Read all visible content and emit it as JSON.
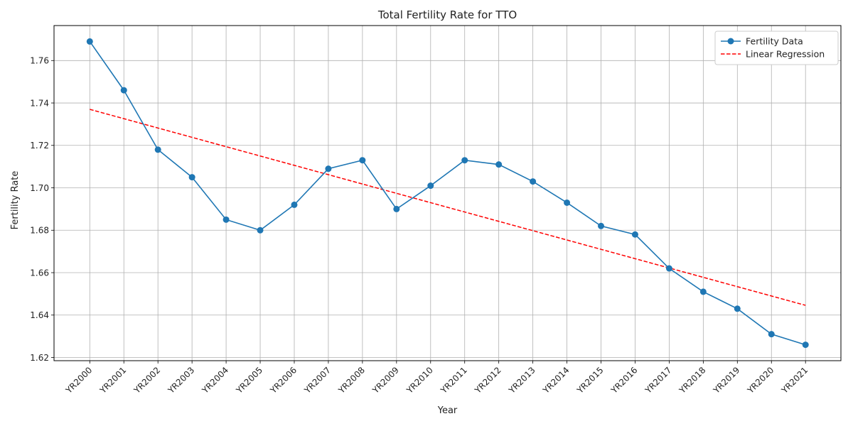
{
  "chart_data": {
    "type": "line",
    "title": "Total Fertility Rate for TTO",
    "xlabel": "Year",
    "ylabel": "Fertility Rate",
    "categories": [
      "YR2000",
      "YR2001",
      "YR2002",
      "YR2003",
      "YR2004",
      "YR2005",
      "YR2006",
      "YR2007",
      "YR2008",
      "YR2009",
      "YR2010",
      "YR2011",
      "YR2012",
      "YR2013",
      "YR2014",
      "YR2015",
      "YR2016",
      "YR2017",
      "YR2018",
      "YR2019",
      "YR2020",
      "YR2021"
    ],
    "ylim": [
      1.6185,
      1.7765
    ],
    "yticks": [
      "1.62",
      "1.64",
      "1.66",
      "1.68",
      "1.70",
      "1.72",
      "1.74",
      "1.76"
    ],
    "grid": true,
    "legend_position": "top-right",
    "series": [
      {
        "name": "Fertility Data",
        "style": "solid-with-markers",
        "color": "#1f77b4",
        "values": [
          1.769,
          1.746,
          1.718,
          1.705,
          1.685,
          1.68,
          1.692,
          1.709,
          1.713,
          1.69,
          1.701,
          1.713,
          1.711,
          1.703,
          1.693,
          1.682,
          1.678,
          1.662,
          1.651,
          1.643,
          1.631,
          1.626
        ]
      },
      {
        "name": "Linear Regression",
        "style": "dashed",
        "color": "#ff0000",
        "values": [
          1.737,
          1.7326,
          1.7282,
          1.7238,
          1.7194,
          1.715,
          1.7106,
          1.7062,
          1.7018,
          1.6974,
          1.693,
          1.6886,
          1.6842,
          1.6798,
          1.6754,
          1.671,
          1.6666,
          1.6622,
          1.6578,
          1.6534,
          1.649,
          1.6446
        ]
      }
    ]
  }
}
